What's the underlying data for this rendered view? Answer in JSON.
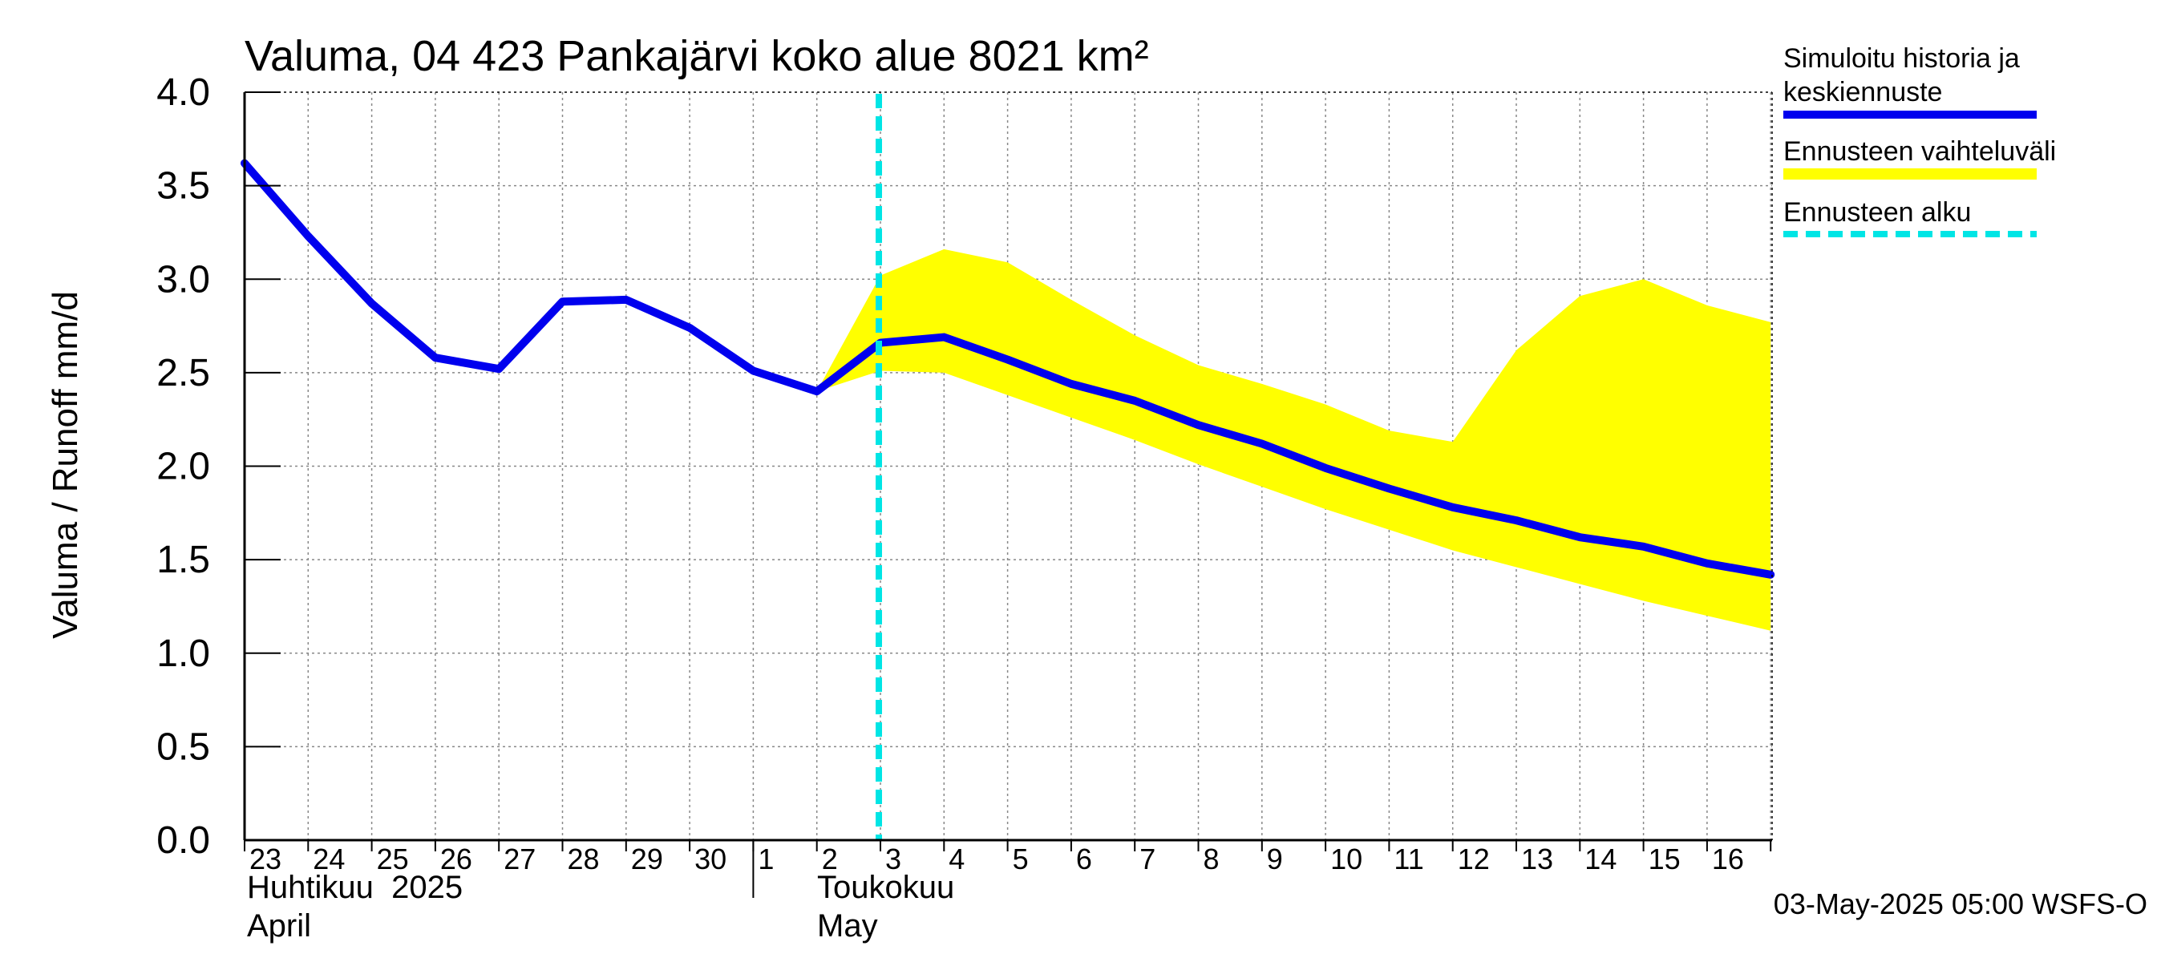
{
  "chart_data": {
    "type": "line",
    "title": "Valuma, 04 423 Pankajärvi koko alue 8021 km²",
    "ylabel": "Valuma / Runoff    mm/d",
    "ylim": [
      0.0,
      4.0
    ],
    "yticks": [
      "0.0",
      "0.5",
      "1.0",
      "1.5",
      "2.0",
      "2.5",
      "3.0",
      "3.5",
      "4.0"
    ],
    "grid": true,
    "legend_position": "right",
    "x_day_labels": [
      "23",
      "24",
      "25",
      "26",
      "27",
      "28",
      "29",
      "30",
      "1",
      "2",
      "3",
      "4",
      "5",
      "6",
      "7",
      "8",
      "9",
      "10",
      "11",
      "12",
      "13",
      "14",
      "15",
      "16"
    ],
    "month_labels": [
      {
        "line1": "Huhtikuu  2025",
        "line2": "April"
      },
      {
        "line1": "Toukokuu",
        "line2": "May"
      }
    ],
    "forecast_start": "2025-05-03",
    "series": [
      {
        "name": "Simuloitu historia ja keskiennuste",
        "color": "#0000ee",
        "x": [
          "2025-04-23",
          "2025-04-24",
          "2025-04-25",
          "2025-04-26",
          "2025-04-27",
          "2025-04-28",
          "2025-04-29",
          "2025-04-30",
          "2025-05-01",
          "2025-05-02",
          "2025-05-03",
          "2025-05-04",
          "2025-05-05",
          "2025-05-06",
          "2025-05-07",
          "2025-05-08",
          "2025-05-09",
          "2025-05-10",
          "2025-05-11",
          "2025-05-12",
          "2025-05-13",
          "2025-05-14",
          "2025-05-15",
          "2025-05-16",
          "2025-05-17"
        ],
        "values": [
          3.62,
          3.23,
          2.87,
          2.58,
          2.52,
          2.88,
          2.89,
          2.74,
          2.51,
          2.4,
          2.66,
          2.69,
          2.57,
          2.44,
          2.35,
          2.22,
          2.12,
          1.99,
          1.88,
          1.78,
          1.71,
          1.62,
          1.57,
          1.48,
          1.42
        ]
      },
      {
        "name": "Ennusteen vaihteluväli",
        "color": "#ffff00",
        "x": [
          "2025-05-02",
          "2025-05-03",
          "2025-05-04",
          "2025-05-05",
          "2025-05-06",
          "2025-05-07",
          "2025-05-08",
          "2025-05-09",
          "2025-05-10",
          "2025-05-11",
          "2025-05-12",
          "2025-05-13",
          "2025-05-14",
          "2025-05-15",
          "2025-05-16",
          "2025-05-17"
        ],
        "upper": [
          2.4,
          3.02,
          3.16,
          3.09,
          2.89,
          2.7,
          2.54,
          2.44,
          2.33,
          2.19,
          2.13,
          2.62,
          2.91,
          3.0,
          2.86,
          2.77
        ],
        "lower": [
          2.4,
          2.51,
          2.5,
          2.38,
          2.26,
          2.14,
          2.01,
          1.89,
          1.77,
          1.66,
          1.55,
          1.46,
          1.37,
          1.28,
          1.2,
          1.12
        ]
      },
      {
        "name": "Ennusteen alku",
        "color": "#00e5e5"
      }
    ],
    "footer": "03-May-2025 05:00 WSFS-O"
  }
}
